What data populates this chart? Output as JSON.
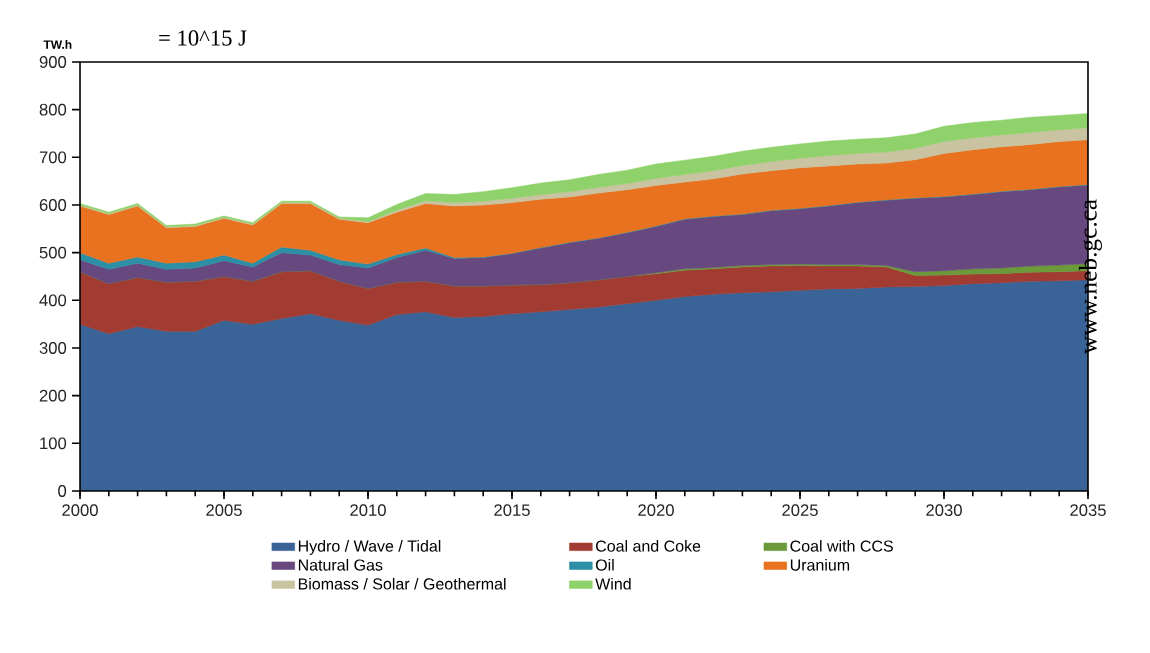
{
  "chart_data": {
    "type": "area",
    "stacked": true,
    "ylabel": "TW.h",
    "annotations": [
      "= 10^15 J",
      "www.neb.gc.ca"
    ],
    "x": [
      2000,
      2001,
      2002,
      2003,
      2004,
      2005,
      2006,
      2007,
      2008,
      2009,
      2010,
      2011,
      2012,
      2013,
      2014,
      2015,
      2016,
      2017,
      2018,
      2019,
      2020,
      2021,
      2022,
      2023,
      2024,
      2025,
      2026,
      2027,
      2028,
      2029,
      2030,
      2031,
      2032,
      2033,
      2034,
      2035
    ],
    "xlim": [
      2000,
      2035
    ],
    "xticks": [
      2000,
      2005,
      2010,
      2015,
      2020,
      2025,
      2030,
      2035
    ],
    "ylim": [
      0,
      900
    ],
    "yticks": [
      0,
      100,
      200,
      300,
      400,
      500,
      600,
      700,
      800,
      900
    ],
    "legend": "bottom",
    "series": [
      {
        "name": "Hydro / Wave / Tidal",
        "color": "#3a6497",
        "values": [
          350,
          330,
          345,
          335,
          335,
          358,
          350,
          362,
          372,
          358,
          348,
          370,
          376,
          364,
          366,
          372,
          376,
          381,
          386,
          393,
          400,
          408,
          413,
          416,
          418,
          421,
          424,
          425,
          428,
          429,
          431,
          435,
          437,
          440,
          441,
          443
        ]
      },
      {
        "name": "Coal and Coke",
        "color": "#a23b32",
        "values": [
          110,
          105,
          103,
          103,
          105,
          92,
          90,
          98,
          90,
          82,
          77,
          68,
          64,
          66,
          64,
          60,
          57,
          56,
          57,
          57,
          56,
          55,
          53,
          54,
          54,
          52,
          48,
          47,
          42,
          23,
          22,
          20,
          19,
          19,
          19,
          19
        ]
      },
      {
        "name": "Coal with CCS",
        "color": "#6c9a3a",
        "values": [
          0,
          0,
          0,
          0,
          0,
          0,
          0,
          0,
          0,
          0,
          0,
          0,
          0,
          0,
          0,
          0,
          0,
          0,
          0,
          0,
          2,
          3,
          3,
          3,
          3,
          3,
          3,
          3,
          3,
          8,
          9,
          11,
          12,
          13,
          14,
          15
        ]
      },
      {
        "name": "Natural Gas",
        "color": "#67497f",
        "values": [
          25,
          30,
          30,
          27,
          28,
          33,
          30,
          40,
          33,
          35,
          43,
          52,
          65,
          58,
          60,
          66,
          77,
          84,
          87,
          92,
          97,
          104,
          107,
          107,
          113,
          116,
          123,
          130,
          137,
          154,
          155,
          156,
          160,
          160,
          164,
          165
        ]
      },
      {
        "name": "Oil",
        "color": "#2c8fa5",
        "values": [
          15,
          13,
          13,
          13,
          13,
          12,
          8,
          12,
          10,
          10,
          8,
          6,
          5,
          2,
          1,
          1,
          1,
          1,
          1,
          1,
          1,
          1,
          1,
          1,
          1,
          1,
          1,
          1,
          1,
          1,
          1,
          1,
          1,
          1,
          1,
          1
        ]
      },
      {
        "name": "Uranium",
        "color": "#e8721f",
        "values": [
          98,
          102,
          107,
          74,
          74,
          77,
          80,
          91,
          98,
          85,
          87,
          89,
          93,
          108,
          109,
          106,
          101,
          95,
          94,
          89,
          85,
          77,
          78,
          84,
          83,
          85,
          83,
          80,
          77,
          80,
          90,
          93,
          93,
          94,
          94,
          94
        ]
      },
      {
        "name": "Biomass / Solar / Geothermal",
        "color": "#c9c3a1",
        "values": [
          2,
          2,
          2,
          2,
          2,
          2,
          2,
          2,
          2,
          2,
          2,
          4,
          6,
          7,
          8,
          9,
          10,
          11,
          12,
          13,
          15,
          16,
          17,
          18,
          19,
          20,
          22,
          22,
          23,
          24,
          25,
          25,
          25,
          25,
          25,
          25
        ]
      },
      {
        "name": "Wind",
        "color": "#8fd16a",
        "values": [
          3,
          3,
          3,
          3,
          3,
          3,
          3,
          3,
          3,
          3,
          8,
          12,
          15,
          17,
          20,
          22,
          24,
          25,
          27,
          28,
          30,
          30,
          30,
          30,
          30,
          30,
          30,
          30,
          30,
          30,
          32,
          32,
          31,
          32,
          30,
          30
        ]
      }
    ]
  }
}
